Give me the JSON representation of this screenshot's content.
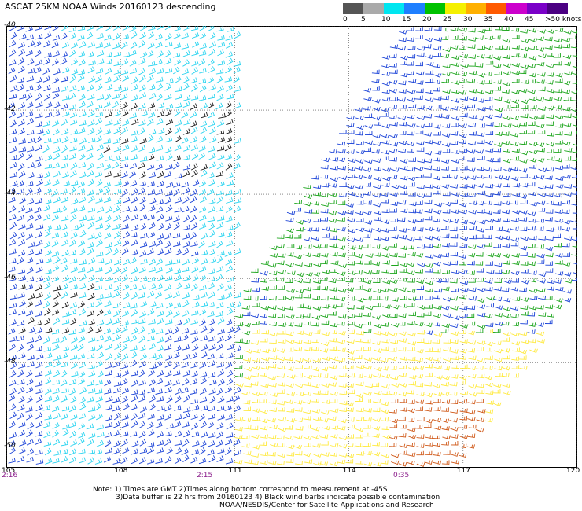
{
  "title": "ASCAT 25KM NOAA Winds 20160123 descending",
  "scale": {
    "labels": [
      "0",
      "5",
      "10",
      "15",
      "20",
      "25",
      "30",
      "35",
      "40",
      "45",
      ">50 knots"
    ],
    "colors": [
      "#555555",
      "#aaaaaa",
      "#00e6f0",
      "#1e7fff",
      "#00c200",
      "#f5f000",
      "#ffb000",
      "#ff5a00",
      "#cc00cc",
      "#7a00c8",
      "#4b0082"
    ]
  },
  "map": {
    "lat_labels": [
      "-40",
      "-42",
      "-44",
      "-46",
      "-48",
      "-50"
    ],
    "lon_labels": [
      "105",
      "108",
      "111",
      "114",
      "117",
      "120"
    ],
    "lon_range": [
      105,
      120
    ],
    "lat_range": [
      -40,
      -50.5
    ],
    "time_labels": [
      "2:16",
      "2:15",
      "0:35"
    ],
    "palette": {
      "calm": "#1a1a1a",
      "light": "#2ad4f0",
      "moderate": "#1c44d8",
      "fresh": "#1ca51c",
      "strong": "#ffea40",
      "gale": "#d05a1a"
    }
  },
  "notes": {
    "line1": "Note: 1) Times are GMT 2)Times along bottom correspond to measurement at -45S",
    "line2": "3)Data buffer is 22 hrs from 20160123 4) Black wind barbs indicate possible contamination",
    "line3": "NOAA/NESDIS/Center for Satellite Applications and Research"
  }
}
